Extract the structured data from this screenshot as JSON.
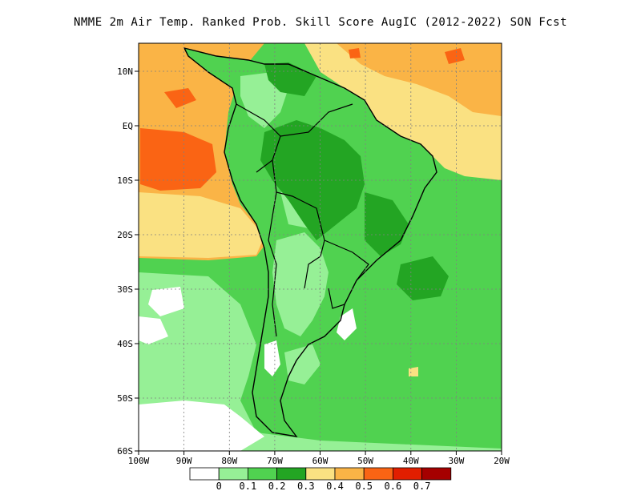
{
  "title": "NMME  2m Air Temp. Ranked Prob. Skill Score AugIC (2012-2022) SON Fcst",
  "map": {
    "lon_range": [
      -100,
      -20
    ],
    "lat_range": [
      -60,
      15
    ],
    "lon_ticks": [
      "100W",
      "90W",
      "80W",
      "70W",
      "60W",
      "50W",
      "40W",
      "30W",
      "20W"
    ],
    "lat_ticks": [
      "10N",
      "EQ",
      "10S",
      "20S",
      "30S",
      "40S",
      "50S",
      "60S"
    ],
    "grid": "dashed"
  },
  "colorbar": {
    "colors": [
      "#ffffff",
      "#96f096",
      "#50d250",
      "#23a523",
      "#fae182",
      "#fab446",
      "#fa6414",
      "#e11e00",
      "#a50000"
    ],
    "labels": [
      "0",
      "0.1",
      "0.2",
      "0.3",
      "0.4",
      "0.5",
      "0.6",
      "0.7"
    ]
  },
  "colors": {
    "ocean_pacific_north": "#fab446",
    "ocean_pacific_hot": "#fa6414",
    "ocean_atlantic_north": "#fae182",
    "land_low": "#96f096",
    "land_mid": "#50d250",
    "land_high": "#23a523"
  }
}
